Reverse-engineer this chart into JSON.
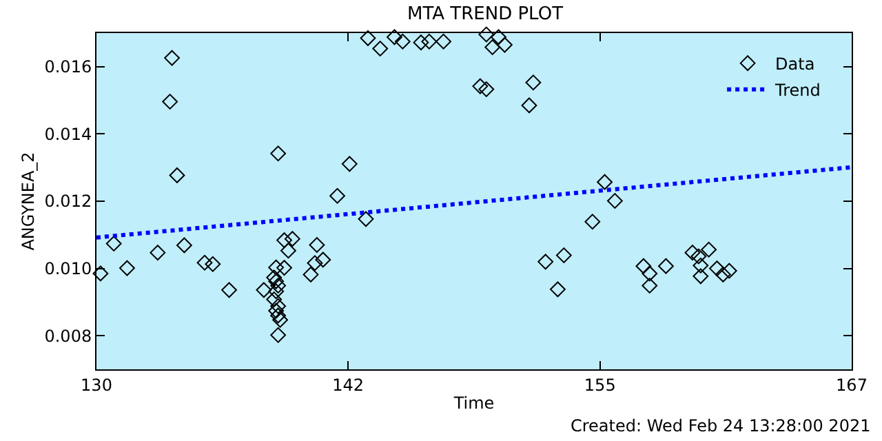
{
  "chart_data": {
    "type": "scatter",
    "title": "MTA TREND PLOT",
    "xlabel": "Time",
    "ylabel": "ANGYNEA_2",
    "annotations": [
      "Created: Wed Feb 24 13:28:00 2021"
    ],
    "xlim": [
      130,
      167
    ],
    "xticks": [
      130,
      {
        "value": 142.33,
        "label": "142"
      },
      {
        "value": 154.67,
        "label": "155"
      },
      167
    ],
    "ylim": [
      0.007,
      0.017
    ],
    "yticks": [
      {
        "value": 0.008,
        "label": "0.008"
      },
      {
        "value": 0.01,
        "label": "0.010"
      },
      {
        "value": 0.012,
        "label": "0.012"
      },
      {
        "value": 0.014,
        "label": "0.014"
      },
      {
        "value": 0.016,
        "label": "0.016"
      }
    ],
    "grid": false,
    "legend": "top right",
    "series": [
      {
        "name": "Data",
        "marker": "diamond",
        "color": "#000000",
        "x": [
          130.2,
          130.85,
          131.5,
          133.0,
          133.7,
          133.6,
          133.95,
          134.3,
          135.3,
          135.7,
          136.5,
          138.2,
          138.9,
          138.8,
          138.7,
          138.8,
          138.9,
          138.8,
          138.7,
          138.9,
          138.8,
          138.9,
          139.0,
          138.9,
          139.2,
          139.6,
          139.4,
          139.2,
          140.8,
          140.7,
          140.5,
          141.1,
          141.8,
          142.4,
          143.2,
          143.3,
          143.9,
          144.6,
          145.0,
          145.9,
          146.3,
          147.0,
          148.8,
          149.1,
          149.1,
          149.4,
          149.7,
          150.0,
          151.2,
          151.4,
          152.0,
          152.6,
          152.9,
          154.9,
          155.4,
          154.3,
          156.8,
          157.1,
          157.1,
          157.9,
          159.2,
          159.5,
          160.0,
          159.6,
          159.6,
          160.4,
          160.7,
          161.0
        ],
        "values": [
          0.00985,
          0.01074,
          0.01001,
          0.01047,
          0.01626,
          0.01496,
          0.01277,
          0.01069,
          0.01017,
          0.01013,
          0.00936,
          0.00936,
          0.01342,
          0.01003,
          0.00973,
          0.00962,
          0.00949,
          0.00932,
          0.00908,
          0.00888,
          0.00874,
          0.0086,
          0.00847,
          0.00802,
          0.01084,
          0.01088,
          0.01053,
          0.01002,
          0.0107,
          0.01016,
          0.00982,
          0.01026,
          0.01216,
          0.01311,
          0.01147,
          0.01685,
          0.01654,
          0.01688,
          0.01675,
          0.01672,
          0.01675,
          0.01675,
          0.01542,
          0.01533,
          0.01696,
          0.01658,
          0.01688,
          0.01665,
          0.01485,
          0.01553,
          0.0102,
          0.00938,
          0.01039,
          0.01257,
          0.01201,
          0.01139,
          0.01007,
          0.00985,
          0.00949,
          0.01007,
          0.01047,
          0.01036,
          0.01056,
          0.01009,
          0.00977,
          0.01,
          0.00982,
          0.00993
        ]
      },
      {
        "name": "Trend",
        "type": "line",
        "marker": "none",
        "line_style": "dotted",
        "color": "#0000ff",
        "x": [
          130,
          167
        ],
        "values": [
          0.01092,
          0.01301
        ]
      }
    ]
  }
}
